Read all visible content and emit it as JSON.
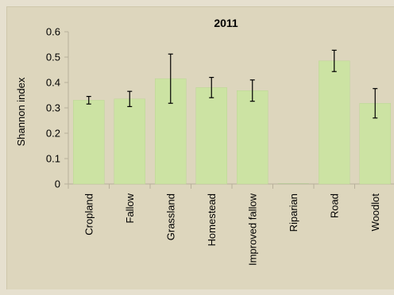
{
  "chart_data": {
    "type": "bar",
    "title": "2011",
    "ylabel": "Shannon index",
    "xlabel": "",
    "ylim": [
      0,
      0.6
    ],
    "yticks": [
      "0",
      "0.1",
      "0.2",
      "0.3",
      "0.4",
      "0.5",
      "0.6"
    ],
    "grid": false,
    "categories": [
      "Cropland",
      "Fallow",
      "Grassland",
      "Homestead",
      "Improved fallow",
      "Riparian",
      "Road",
      "Woodlot"
    ],
    "values": [
      0.33,
      0.335,
      0.415,
      0.38,
      0.368,
      0.0,
      0.485,
      0.318
    ],
    "error": [
      0.015,
      0.03,
      0.097,
      0.04,
      0.042,
      0.0,
      0.042,
      0.058
    ],
    "colors": {
      "bar": "#cce3a3",
      "bar_edge": "#bcd596",
      "error_bar": "#000000",
      "background": "#ddd6bd"
    }
  }
}
